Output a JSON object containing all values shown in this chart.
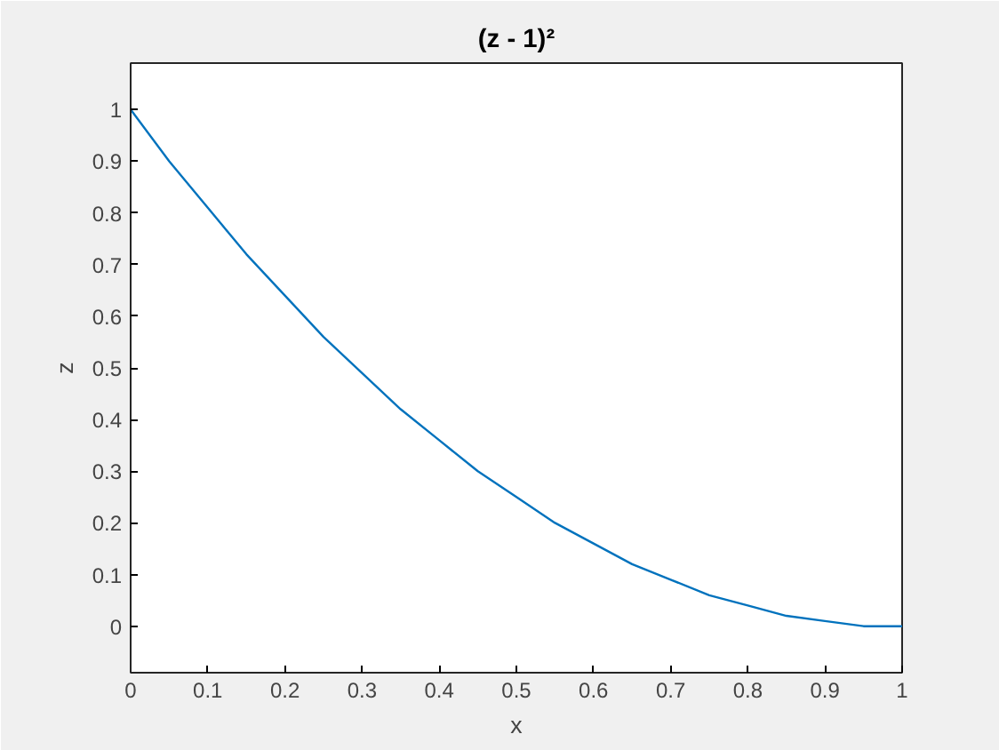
{
  "chart_data": {
    "type": "line",
    "title": "(z - 1)²",
    "xlabel": "x",
    "ylabel": "z",
    "x": [
      0,
      0.05,
      0.1,
      0.15,
      0.2,
      0.25,
      0.3,
      0.35,
      0.4,
      0.45,
      0.5,
      0.55,
      0.6,
      0.65,
      0.7,
      0.75,
      0.8,
      0.85,
      0.9,
      0.95,
      1
    ],
    "series": [
      {
        "color": "#0072bd",
        "values": [
          1,
          0.9,
          0.81,
          0.72,
          0.64,
          0.56,
          0.49,
          0.42,
          0.36,
          0.3,
          0.25,
          0.2,
          0.16,
          0.12,
          0.09,
          0.06,
          0.04,
          0.02,
          0.01,
          0.0,
          0
        ]
      }
    ],
    "xlim": [
      0,
      1
    ],
    "ylim": [
      -0.09,
      1.09
    ],
    "xticks": [
      0,
      0.1,
      0.2,
      0.3,
      0.4,
      0.5,
      0.6,
      0.7,
      0.8,
      0.9,
      1
    ],
    "yticks": [
      0,
      0.1,
      0.2,
      0.3,
      0.4,
      0.5,
      0.6,
      0.7,
      0.8,
      0.9,
      1
    ],
    "grid": false,
    "marker": "none",
    "line_style": "solid"
  }
}
